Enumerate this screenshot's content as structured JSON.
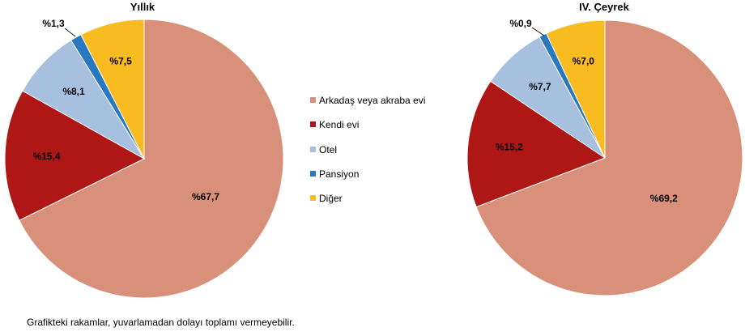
{
  "colors": {
    "arkadas": "#D8907A",
    "kendi": "#AF1616",
    "otel": "#A8C0E0",
    "pansiyon": "#2878C0",
    "diger": "#F8BC20"
  },
  "chart_data": [
    {
      "type": "pie",
      "title": "Yıllık",
      "slices": [
        {
          "name": "Arkadaş veya akraba evi",
          "value": 67.7,
          "label": "%67,7",
          "color": "#D8907A"
        },
        {
          "name": "Kendi evi",
          "value": 15.4,
          "label": "%15,4",
          "color": "#AF1616"
        },
        {
          "name": "Otel",
          "value": 8.1,
          "label": "%8,1",
          "color": "#A8C0E0"
        },
        {
          "name": "Pansiyon",
          "value": 1.3,
          "label": "%1,3",
          "color": "#2878C0"
        },
        {
          "name": "Diğer",
          "value": 7.5,
          "label": "%7,5",
          "color": "#F8BC20"
        }
      ]
    },
    {
      "type": "pie",
      "title": "IV. Çeyrek",
      "slices": [
        {
          "name": "Arkadaş veya akraba evi",
          "value": 69.2,
          "label": "%69,2",
          "color": "#D8907A"
        },
        {
          "name": "Kendi evi",
          "value": 15.2,
          "label": "%15,2",
          "color": "#AF1616"
        },
        {
          "name": "Otel",
          "value": 7.7,
          "label": "%7,7",
          "color": "#A8C0E0"
        },
        {
          "name": "Pansiyon",
          "value": 0.9,
          "label": "%0,9",
          "color": "#2878C0"
        },
        {
          "name": "Diğer",
          "value": 7.0,
          "label": "%7,0",
          "color": "#F8BC20"
        }
      ]
    }
  ],
  "legend": {
    "items": [
      {
        "label": "Arkadaş veya akraba evi",
        "color": "#D8907A"
      },
      {
        "label": "Kendi evi",
        "color": "#AF1616"
      },
      {
        "label": "Otel",
        "color": "#A8C0E0"
      },
      {
        "label": "Pansiyon",
        "color": "#2878C0"
      },
      {
        "label": "Diğer",
        "color": "#F8BC20"
      }
    ]
  },
  "footnote": "Grafikteki rakamlar, yuvarlamadan dolayı toplamı vermeyebilir."
}
